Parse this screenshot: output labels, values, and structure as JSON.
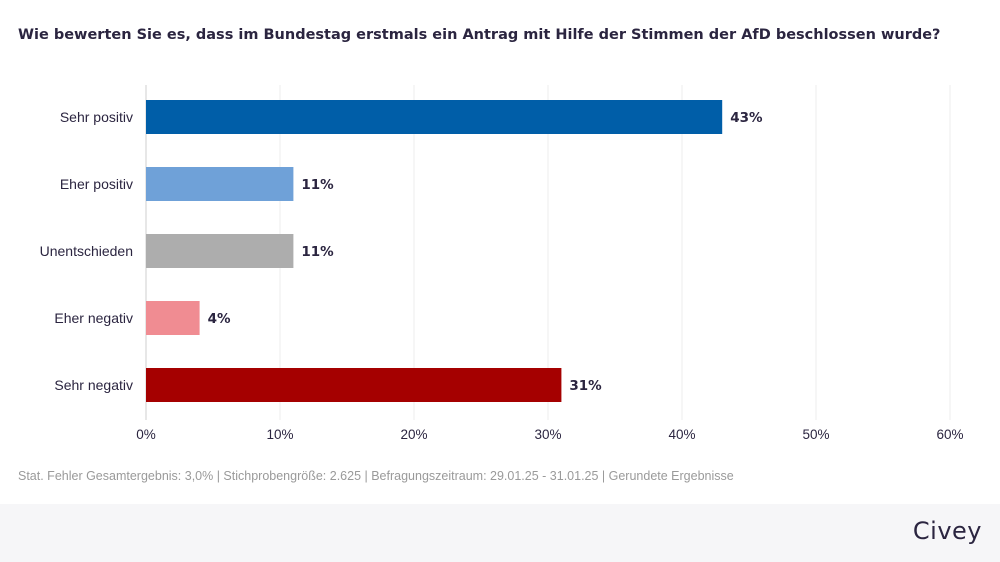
{
  "title": "Wie bewerten Sie es, dass im Bundestag erstmals ein Antrag mit Hilfe der Stimmen der AfD beschlossen wurde?",
  "footnote": "Stat. Fehler Gesamtergebnis: 3,0% | Stichprobengröße: 2.625 | Befragungszeitraum: 29.01.25 - 31.01.25 | Gerundete Ergebnisse",
  "brand": "Civey",
  "chart_data": {
    "type": "bar",
    "orientation": "horizontal",
    "categories": [
      "Sehr positiv",
      "Eher positiv",
      "Unentschieden",
      "Eher negativ",
      "Sehr negativ"
    ],
    "values": [
      43,
      11,
      11,
      4,
      31
    ],
    "value_labels": [
      "43%",
      "11%",
      "11%",
      "4%",
      "31%"
    ],
    "colors": [
      "#005ea8",
      "#6fa1d8",
      "#adadad",
      "#f08c92",
      "#a50000"
    ],
    "xlim": [
      0,
      60
    ],
    "xticks": [
      0,
      10,
      20,
      30,
      40,
      50,
      60
    ],
    "xtick_labels": [
      "0%",
      "10%",
      "20%",
      "30%",
      "40%",
      "50%",
      "60%"
    ],
    "grid": "vertical",
    "legend": "none"
  }
}
